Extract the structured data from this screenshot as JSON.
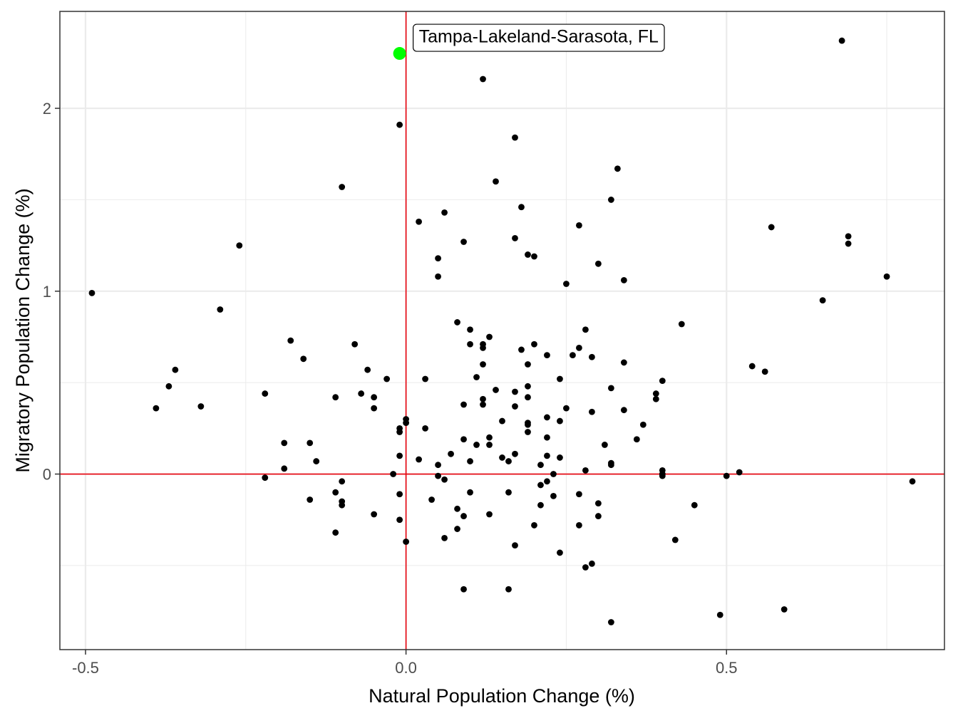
{
  "chart_data": {
    "type": "scatter",
    "title": "",
    "xlabel": "Natural Population Change (%)",
    "ylabel": "Migratory Population Change (%)",
    "xlim": [
      -0.54,
      0.84
    ],
    "ylim": [
      -0.96,
      2.53
    ],
    "x_ticks": [
      {
        "value": -0.5,
        "label": "-0.5"
      },
      {
        "value": 0.0,
        "label": "0.0"
      },
      {
        "value": 0.5,
        "label": "0.5"
      }
    ],
    "y_ticks": [
      {
        "value": 0,
        "label": "0"
      },
      {
        "value": 1,
        "label": "1"
      },
      {
        "value": 2,
        "label": "2"
      }
    ],
    "x_minor_grid": [
      -0.25,
      0.25,
      0.75
    ],
    "y_minor_grid": [
      -0.5,
      0.5,
      1.5
    ],
    "grid": true,
    "reference_lines": {
      "x": 0,
      "y": 0,
      "color": "#e8000b"
    },
    "point_color": "#000000",
    "highlight": {
      "name": "Tampa-Lakeland-Sarasota, FL",
      "x": -0.01,
      "y": 2.3,
      "color": "#00ff00"
    },
    "points": [
      [
        -0.49,
        0.99
      ],
      [
        -0.39,
        0.36
      ],
      [
        -0.37,
        0.48
      ],
      [
        -0.36,
        0.57
      ],
      [
        -0.32,
        0.37
      ],
      [
        -0.29,
        0.9
      ],
      [
        -0.26,
        1.25
      ],
      [
        -0.22,
        0.44
      ],
      [
        -0.22,
        -0.02
      ],
      [
        -0.19,
        0.17
      ],
      [
        -0.19,
        0.03
      ],
      [
        -0.18,
        0.73
      ],
      [
        -0.16,
        0.63
      ],
      [
        -0.15,
        0.17
      ],
      [
        -0.15,
        -0.14
      ],
      [
        -0.14,
        0.07
      ],
      [
        -0.11,
        0.42
      ],
      [
        -0.11,
        -0.1
      ],
      [
        -0.11,
        -0.32
      ],
      [
        -0.1,
        1.57
      ],
      [
        -0.1,
        -0.04
      ],
      [
        -0.1,
        -0.15
      ],
      [
        -0.1,
        -0.17
      ],
      [
        -0.08,
        0.71
      ],
      [
        -0.07,
        0.44
      ],
      [
        -0.06,
        0.57
      ],
      [
        -0.05,
        0.42
      ],
      [
        -0.05,
        0.36
      ],
      [
        -0.05,
        -0.22
      ],
      [
        -0.03,
        0.52
      ],
      [
        -0.02,
        0.0
      ],
      [
        -0.01,
        1.91
      ],
      [
        -0.01,
        0.25
      ],
      [
        -0.01,
        0.23
      ],
      [
        -0.01,
        0.1
      ],
      [
        -0.01,
        -0.11
      ],
      [
        -0.01,
        -0.25
      ],
      [
        0.0,
        0.3
      ],
      [
        0.0,
        0.28
      ],
      [
        0.0,
        -0.37
      ],
      [
        0.02,
        1.38
      ],
      [
        0.02,
        0.08
      ],
      [
        0.03,
        0.52
      ],
      [
        0.03,
        0.25
      ],
      [
        0.04,
        -0.14
      ],
      [
        0.05,
        1.18
      ],
      [
        0.05,
        1.08
      ],
      [
        0.05,
        0.05
      ],
      [
        0.05,
        -0.01
      ],
      [
        0.06,
        1.43
      ],
      [
        0.06,
        -0.03
      ],
      [
        0.06,
        -0.35
      ],
      [
        0.07,
        0.11
      ],
      [
        0.08,
        0.83
      ],
      [
        0.08,
        -0.19
      ],
      [
        0.08,
        -0.3
      ],
      [
        0.09,
        1.27
      ],
      [
        0.09,
        0.38
      ],
      [
        0.09,
        0.19
      ],
      [
        0.09,
        -0.23
      ],
      [
        0.09,
        -0.63
      ],
      [
        0.1,
        0.79
      ],
      [
        0.1,
        0.71
      ],
      [
        0.1,
        0.07
      ],
      [
        0.1,
        -0.1
      ],
      [
        0.11,
        0.53
      ],
      [
        0.11,
        0.16
      ],
      [
        0.12,
        2.16
      ],
      [
        0.12,
        0.71
      ],
      [
        0.12,
        0.69
      ],
      [
        0.12,
        0.6
      ],
      [
        0.12,
        0.41
      ],
      [
        0.12,
        0.38
      ],
      [
        0.13,
        0.75
      ],
      [
        0.13,
        0.2
      ],
      [
        0.13,
        0.16
      ],
      [
        0.13,
        -0.22
      ],
      [
        0.14,
        1.6
      ],
      [
        0.14,
        0.46
      ],
      [
        0.15,
        0.29
      ],
      [
        0.15,
        0.09
      ],
      [
        0.16,
        0.07
      ],
      [
        0.16,
        -0.1
      ],
      [
        0.16,
        -0.63
      ],
      [
        0.17,
        1.84
      ],
      [
        0.17,
        1.29
      ],
      [
        0.17,
        0.45
      ],
      [
        0.17,
        0.37
      ],
      [
        0.17,
        0.11
      ],
      [
        0.17,
        -0.39
      ],
      [
        0.18,
        1.46
      ],
      [
        0.18,
        0.68
      ],
      [
        0.19,
        1.2
      ],
      [
        0.19,
        0.6
      ],
      [
        0.19,
        0.48
      ],
      [
        0.19,
        0.42
      ],
      [
        0.19,
        0.28
      ],
      [
        0.19,
        0.27
      ],
      [
        0.19,
        0.23
      ],
      [
        0.2,
        1.19
      ],
      [
        0.2,
        0.71
      ],
      [
        0.2,
        -0.28
      ],
      [
        0.21,
        0.05
      ],
      [
        0.21,
        -0.06
      ],
      [
        0.21,
        -0.17
      ],
      [
        0.22,
        0.65
      ],
      [
        0.22,
        0.31
      ],
      [
        0.22,
        0.2
      ],
      [
        0.22,
        0.1
      ],
      [
        0.22,
        -0.04
      ],
      [
        0.23,
        0.0
      ],
      [
        0.23,
        -0.12
      ],
      [
        0.24,
        0.52
      ],
      [
        0.24,
        0.29
      ],
      [
        0.24,
        0.09
      ],
      [
        0.24,
        -0.43
      ],
      [
        0.25,
        1.04
      ],
      [
        0.25,
        0.36
      ],
      [
        0.26,
        0.65
      ],
      [
        0.27,
        1.36
      ],
      [
        0.27,
        0.69
      ],
      [
        0.27,
        -0.11
      ],
      [
        0.27,
        -0.28
      ],
      [
        0.28,
        0.79
      ],
      [
        0.28,
        0.02
      ],
      [
        0.28,
        -0.51
      ],
      [
        0.29,
        0.64
      ],
      [
        0.29,
        0.34
      ],
      [
        0.29,
        -0.49
      ],
      [
        0.3,
        1.15
      ],
      [
        0.3,
        -0.16
      ],
      [
        0.3,
        -0.23
      ],
      [
        0.31,
        0.16
      ],
      [
        0.32,
        1.5
      ],
      [
        0.32,
        0.47
      ],
      [
        0.32,
        0.06
      ],
      [
        0.32,
        0.05
      ],
      [
        0.32,
        -0.81
      ],
      [
        0.33,
        1.67
      ],
      [
        0.34,
        1.06
      ],
      [
        0.34,
        0.61
      ],
      [
        0.34,
        0.35
      ],
      [
        0.36,
        0.19
      ],
      [
        0.37,
        0.27
      ],
      [
        0.39,
        0.44
      ],
      [
        0.39,
        0.41
      ],
      [
        0.4,
        0.51
      ],
      [
        0.4,
        0.02
      ],
      [
        0.4,
        0.0
      ],
      [
        0.4,
        -0.01
      ],
      [
        0.42,
        -0.36
      ],
      [
        0.43,
        0.82
      ],
      [
        0.45,
        -0.17
      ],
      [
        0.49,
        -0.77
      ],
      [
        0.5,
        -0.01
      ],
      [
        0.52,
        0.01
      ],
      [
        0.54,
        0.59
      ],
      [
        0.56,
        0.56
      ],
      [
        0.57,
        1.35
      ],
      [
        0.59,
        -0.74
      ],
      [
        0.65,
        0.95
      ],
      [
        0.68,
        2.37
      ],
      [
        0.69,
        1.3
      ],
      [
        0.69,
        1.26
      ],
      [
        0.75,
        1.08
      ],
      [
        0.79,
        -0.04
      ]
    ]
  }
}
